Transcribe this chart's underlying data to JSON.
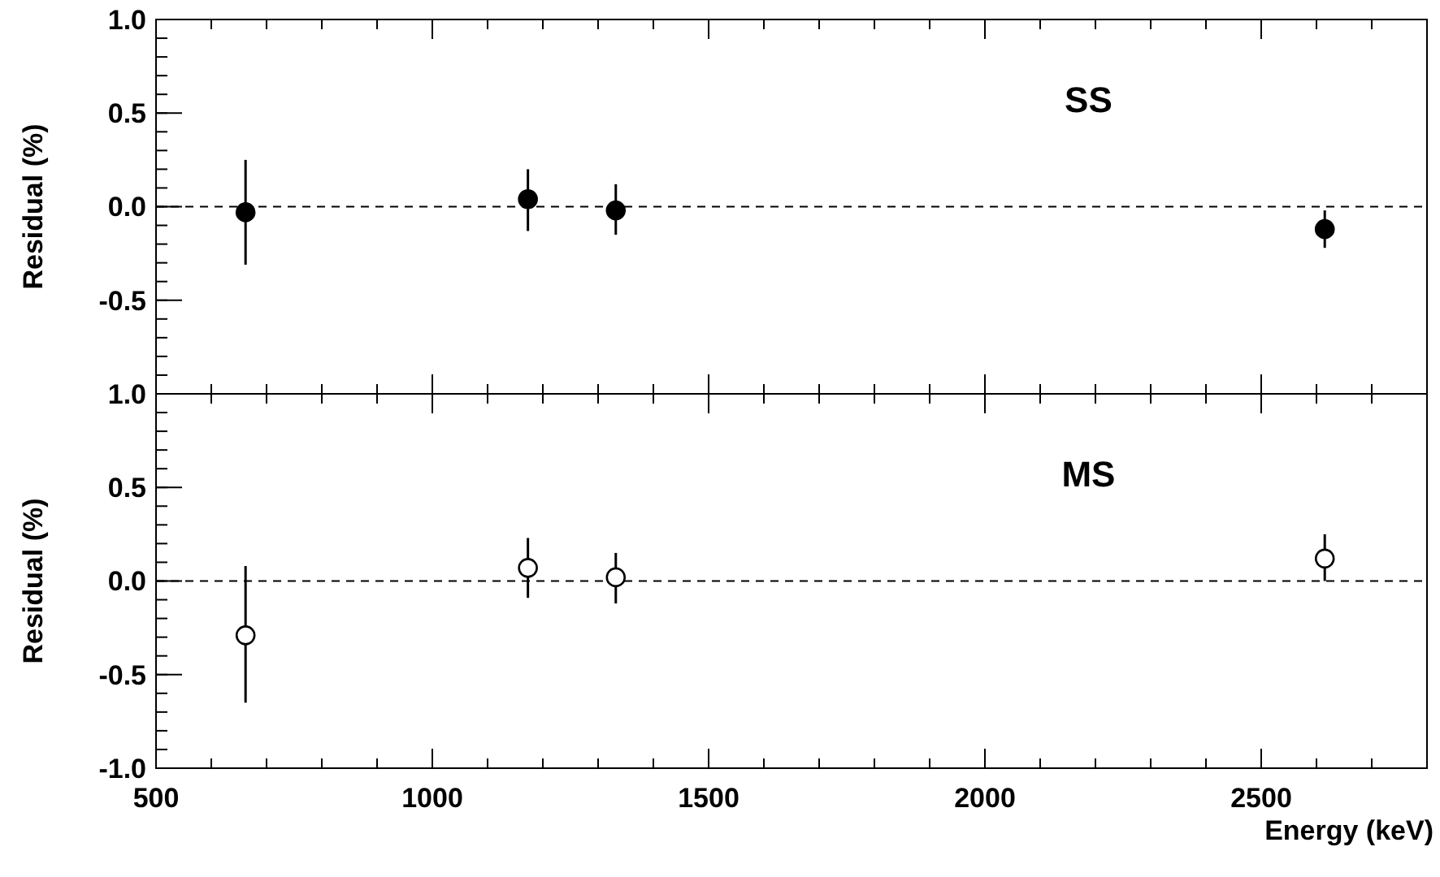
{
  "chart_data": [
    {
      "type": "scatter",
      "ylabel": "Residual (%)",
      "annotations": [
        "SS"
      ],
      "x": [
        662,
        1173,
        1332,
        2615
      ],
      "series": [
        {
          "color": "#000000",
          "values": [
            -0.03,
            0.04,
            -0.02,
            -0.12
          ],
          "errors": [
            [
              -0.31,
              0.25
            ],
            [
              -0.13,
              0.2
            ],
            [
              -0.15,
              0.12
            ],
            [
              -0.22,
              -0.02
            ]
          ]
        }
      ],
      "xlim": [
        500,
        2800
      ],
      "xticks": [
        500,
        1000,
        1500,
        2000,
        2500
      ],
      "ylim": [
        -1,
        1
      ],
      "yticks": [
        {
          "value": -1,
          "label": null
        },
        {
          "value": -0.5,
          "label": "-0.5"
        },
        {
          "value": 0,
          "label": "0.0"
        },
        {
          "value": 0.5,
          "label": "0.5"
        },
        {
          "value": 1,
          "label": "1.0"
        }
      ],
      "tick_labels": "y",
      "marker": "circle",
      "ref_lines": [
        {
          "axis": "y",
          "value": 0,
          "line_style": "dashed",
          "color": "#000000"
        }
      ]
    },
    {
      "type": "scatter",
      "xlabel": "Energy (keV)",
      "ylabel": "Residual (%)",
      "annotations": [
        "MS"
      ],
      "x": [
        662,
        1173,
        1332,
        2615
      ],
      "series": [
        {
          "color": "#000000",
          "values": [
            -0.29,
            0.07,
            0.02,
            0.12
          ],
          "errors": [
            [
              -0.65,
              0.08
            ],
            [
              -0.09,
              0.23
            ],
            [
              -0.12,
              0.15
            ],
            [
              0.0,
              0.25
            ]
          ]
        }
      ],
      "xlim": [
        500,
        2800
      ],
      "xticks": [
        500,
        1000,
        1500,
        2000,
        2500
      ],
      "ylim": [
        -1,
        1
      ],
      "yticks": [
        {
          "value": -1,
          "label": "-1.0"
        },
        {
          "value": -0.5,
          "label": "-0.5"
        },
        {
          "value": 0,
          "label": "0.0"
        },
        {
          "value": 0.5,
          "label": "0.5"
        },
        {
          "value": 1,
          "label": "1.0"
        }
      ],
      "marker": "circle",
      "ref_lines": [
        {
          "axis": "y",
          "value": 0,
          "line_style": "dashed",
          "color": "#000000"
        }
      ]
    }
  ]
}
